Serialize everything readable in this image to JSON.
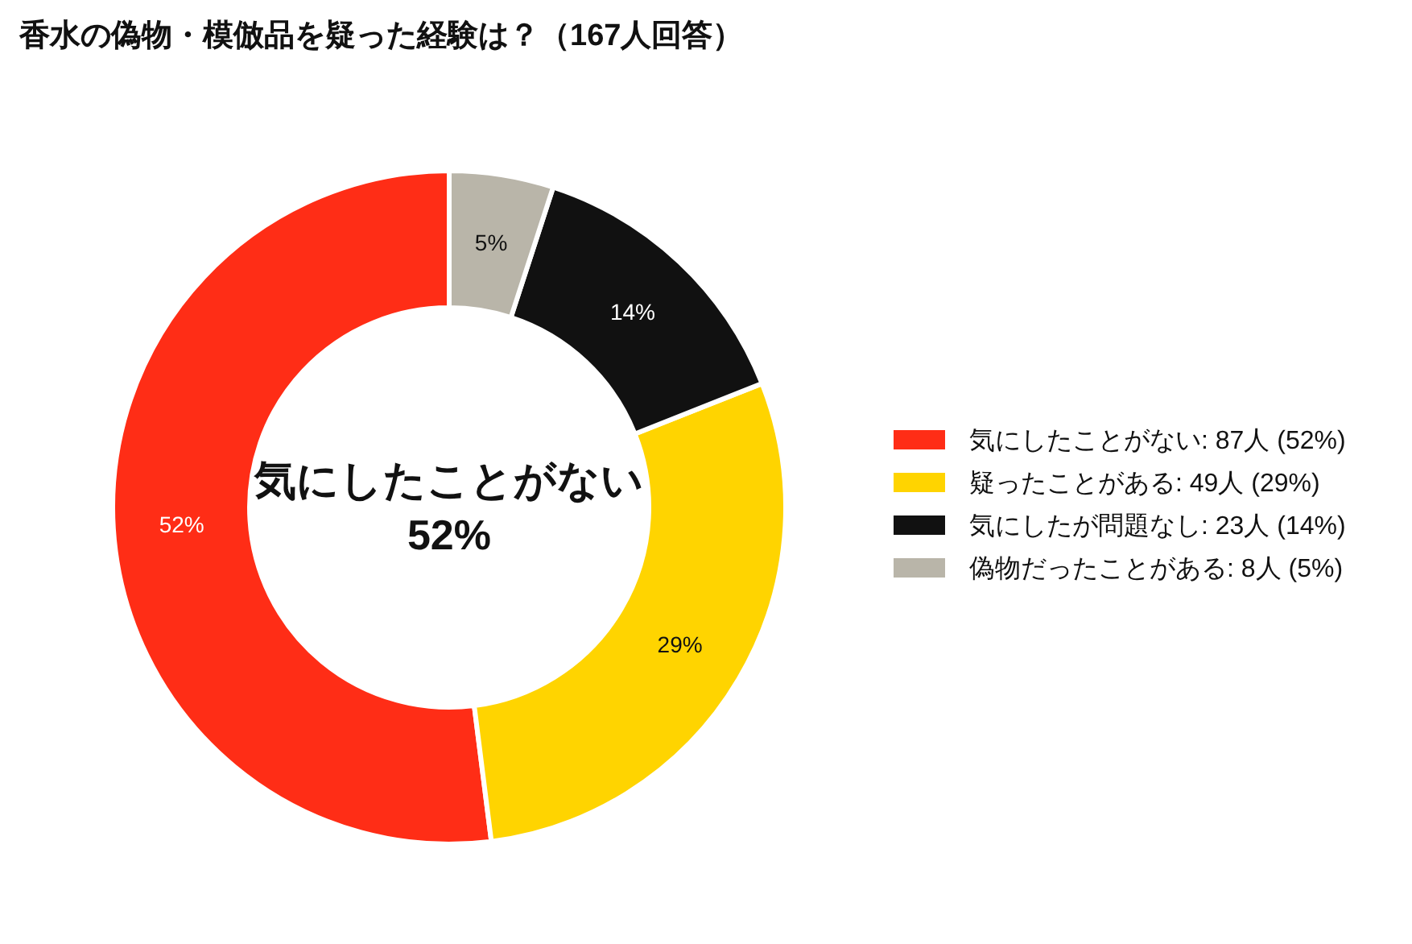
{
  "chart_data": {
    "type": "donut",
    "title": "香水の偽物・模倣品を疑った経験は？（167人回答）",
    "categories": [
      "気にしたことがない:  87人 (52%)",
      "疑ったことがある:  49人 (29%)",
      "気にしたが問題なし:  23人 (14%)",
      "偽物だったことがある:  8人 (5%)"
    ],
    "values": [
      52,
      29,
      14,
      5
    ],
    "value_labels": [
      "52%",
      "29%",
      "14%",
      "5%"
    ],
    "colors": [
      "#ff2d16",
      "#ffd400",
      "#111111",
      "#b9b5a9"
    ],
    "annotations": [
      "気にしたことがない",
      "52%"
    ],
    "legend": "right"
  }
}
